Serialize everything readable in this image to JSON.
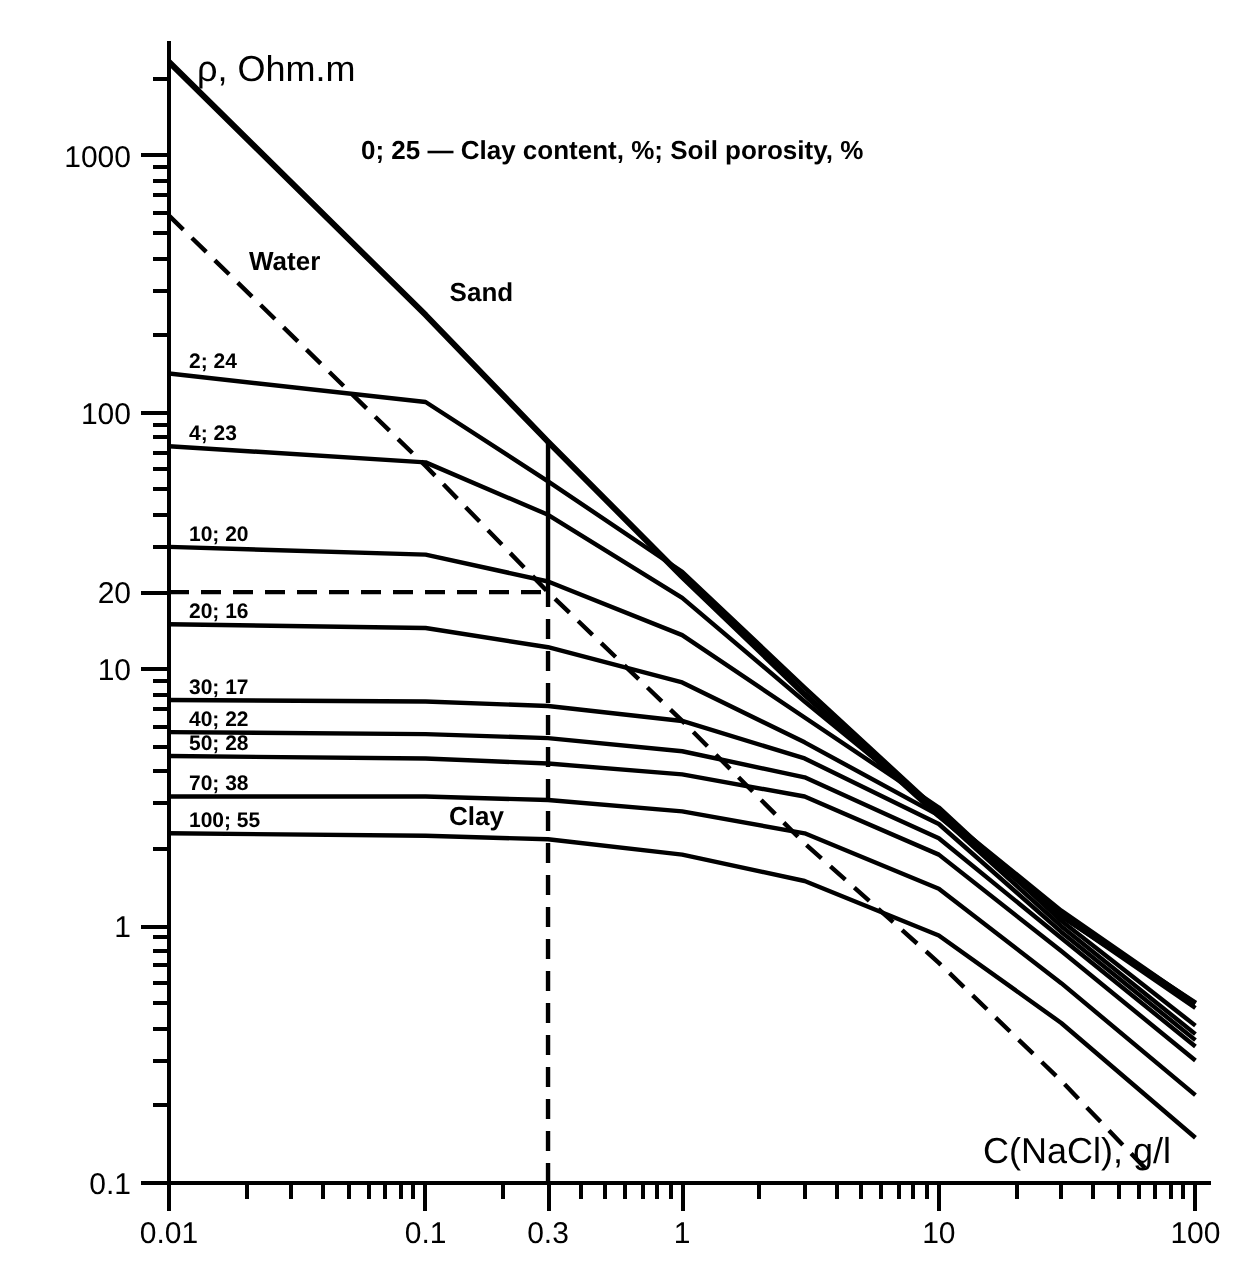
{
  "chart_data": {
    "type": "line",
    "xlabel": "C(NaCl), g/l",
    "ylabel": "ρ, Ohm.m",
    "log": "xy",
    "grid": false,
    "legend": "left",
    "marker": "none",
    "line_style": "solid",
    "xlim": [
      0.01,
      115
    ],
    "ylim": [
      0.1,
      2800
    ],
    "xticks": [
      {
        "value": 0.01,
        "label": "0.01"
      },
      {
        "value": 0.02,
        "label": null
      },
      {
        "value": 0.03,
        "label": null
      },
      {
        "value": 0.04,
        "label": null
      },
      {
        "value": 0.05,
        "label": null
      },
      {
        "value": 0.06,
        "label": null
      },
      {
        "value": 0.07,
        "label": null
      },
      {
        "value": 0.08,
        "label": null
      },
      {
        "value": 0.09,
        "label": null
      },
      {
        "value": 0.1,
        "label": "0.1"
      },
      {
        "value": 0.2,
        "label": null
      },
      {
        "value": 0.3,
        "label": "0.3"
      },
      {
        "value": 0.4,
        "label": null
      },
      {
        "value": 0.5,
        "label": null
      },
      {
        "value": 0.6,
        "label": null
      },
      {
        "value": 0.7,
        "label": null
      },
      {
        "value": 0.8,
        "label": null
      },
      {
        "value": 0.9,
        "label": null
      },
      1,
      {
        "value": 2,
        "label": null
      },
      {
        "value": 3,
        "label": null
      },
      {
        "value": 4,
        "label": null
      },
      {
        "value": 5,
        "label": null
      },
      {
        "value": 6,
        "label": null
      },
      {
        "value": 7,
        "label": null
      },
      {
        "value": 8,
        "label": null
      },
      {
        "value": 9,
        "label": null
      },
      10,
      {
        "value": 20,
        "label": null
      },
      {
        "value": 30,
        "label": null
      },
      {
        "value": 40,
        "label": null
      },
      {
        "value": 50,
        "label": null
      },
      {
        "value": 60,
        "label": null
      },
      {
        "value": 70,
        "label": null
      },
      {
        "value": 80,
        "label": null
      },
      {
        "value": 90,
        "label": null
      },
      100
    ],
    "yticks": [
      {
        "value": 0.1,
        "label": "0.1"
      },
      {
        "value": 0.2,
        "label": null
      },
      {
        "value": 0.3,
        "label": null
      },
      {
        "value": 0.4,
        "label": null
      },
      {
        "value": 0.5,
        "label": null
      },
      {
        "value": 0.6,
        "label": null
      },
      {
        "value": 0.7,
        "label": null
      },
      {
        "value": 0.8,
        "label": null
      },
      {
        "value": 0.9,
        "label": null
      },
      1,
      {
        "value": 2,
        "label": null
      },
      {
        "value": 3,
        "label": null
      },
      {
        "value": 4,
        "label": null
      },
      {
        "value": 5,
        "label": null
      },
      {
        "value": 6,
        "label": null
      },
      {
        "value": 7,
        "label": null
      },
      {
        "value": 8,
        "label": null
      },
      {
        "value": 9,
        "label": null
      },
      10,
      20,
      {
        "value": 30,
        "label": null
      },
      {
        "value": 40,
        "label": null
      },
      {
        "value": 50,
        "label": null
      },
      {
        "value": 60,
        "label": null
      },
      {
        "value": 70,
        "label": null
      },
      {
        "value": 80,
        "label": null
      },
      {
        "value": 90,
        "label": null
      },
      100,
      {
        "value": 200,
        "label": null
      },
      {
        "value": 300,
        "label": null
      },
      {
        "value": 400,
        "label": null
      },
      {
        "value": 500,
        "label": null
      },
      {
        "value": 600,
        "label": null
      },
      {
        "value": 700,
        "label": null
      },
      {
        "value": 800,
        "label": null
      },
      {
        "value": 900,
        "label": null
      },
      1000,
      {
        "value": 2000,
        "label": null
      }
    ],
    "x": [
      0.01,
      0.1,
      0.3,
      1,
      3,
      10,
      30,
      100
    ],
    "series": [
      {
        "name": "Sand",
        "color": "#000000",
        "values": [
          2320,
          240,
          77,
          23,
          8,
          2.7,
          1.1,
          0.5
        ]
      },
      {
        "name": "2; 24",
        "color": "#000000",
        "values": [
          142,
          110,
          54,
          24,
          8.5,
          2.8,
          1.15,
          0.5
        ]
      },
      {
        "name": "4; 23",
        "color": "#000000",
        "values": [
          74,
          64,
          40,
          19,
          7.5,
          2.8,
          1.1,
          0.48
        ]
      },
      {
        "name": "10; 20",
        "color": "#000000",
        "values": [
          30,
          28,
          22,
          13.6,
          6.5,
          2.9,
          1.05,
          0.41
        ]
      },
      {
        "name": "20; 16",
        "color": "#000000",
        "values": [
          15,
          14.5,
          12.2,
          8.9,
          5.2,
          2.7,
          1.0,
          0.38
        ]
      },
      {
        "name": "30; 17",
        "color": "#000000",
        "values": [
          7.6,
          7.5,
          7.2,
          6.3,
          4.5,
          2.5,
          0.95,
          0.36
        ]
      },
      {
        "name": "40; 22",
        "color": "#000000",
        "values": [
          5.7,
          5.6,
          5.4,
          4.8,
          3.8,
          2.2,
          0.9,
          0.34
        ]
      },
      {
        "name": "50; 28",
        "color": "#000000",
        "values": [
          4.6,
          4.5,
          4.3,
          3.9,
          3.2,
          1.9,
          0.8,
          0.3
        ]
      },
      {
        "name": "70; 38",
        "color": "#000000",
        "values": [
          3.2,
          3.2,
          3.1,
          2.8,
          2.3,
          1.4,
          0.6,
          0.22
        ]
      },
      {
        "name": "100; 55",
        "color": "#000000",
        "values": [
          2.3,
          2.25,
          2.18,
          1.9,
          1.5,
          0.92,
          0.42,
          0.15
        ]
      },
      {
        "name": "Water",
        "color": "#000000",
        "line_style": "dashed",
        "x": [
          0.01,
          0.1,
          0.3,
          1,
          3,
          10,
          30,
          66
        ],
        "values": [
          585,
          62,
          20,
          6.3,
          2.1,
          0.72,
          0.25,
          0.11
        ]
      },
      {
        "color": "#000000",
        "line_style": "dashed",
        "x": [
          0.01,
          0.3
        ],
        "values": [
          20,
          20
        ]
      },
      {
        "color": "#000000",
        "line_style": "dashed",
        "x": [
          0.3,
          0.3
        ],
        "values": [
          0.1,
          20
        ]
      },
      {
        "color": "#000000",
        "x": [
          0.3,
          0.3
        ],
        "values": [
          20,
          77
        ]
      }
    ],
    "annotations": [
      "0; 25 — Clay content, %; Soil porosity, %",
      "Clay"
    ]
  }
}
